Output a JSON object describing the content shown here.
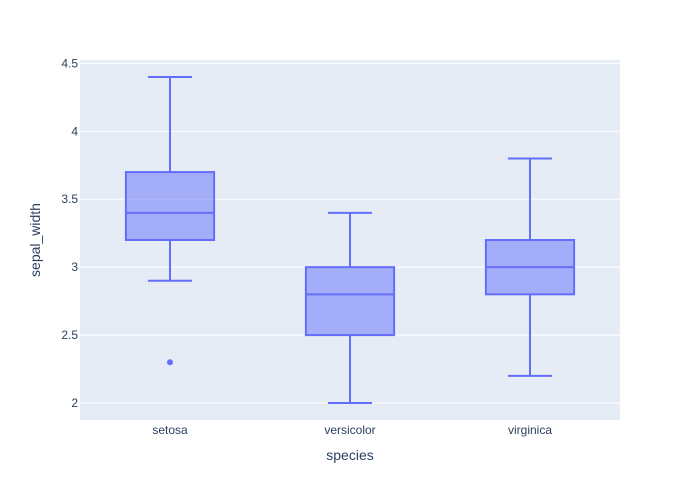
{
  "chart_data": {
    "type": "box",
    "xlabel": "species",
    "ylabel": "sepal_width",
    "categories": [
      "setosa",
      "versicolor",
      "virginica"
    ],
    "ylim": [
      1.875,
      4.525
    ],
    "yticks": [
      2,
      2.5,
      3,
      3.5,
      4,
      4.5
    ],
    "ytick_labels": [
      "2",
      "2.5",
      "3",
      "3.5",
      "4",
      "4.5"
    ],
    "grid": true,
    "boxes": [
      {
        "category": "setosa",
        "min": 2.9,
        "q1": 3.2,
        "median": 3.4,
        "q3": 3.7,
        "max": 4.4,
        "outliers": [
          2.3
        ]
      },
      {
        "category": "versicolor",
        "min": 2.0,
        "q1": 2.5,
        "median": 2.8,
        "q3": 3.0,
        "max": 3.4,
        "outliers": []
      },
      {
        "category": "virginica",
        "min": 2.2,
        "q1": 2.8,
        "median": 3.0,
        "q3": 3.2,
        "max": 3.8,
        "outliers": []
      }
    ],
    "colors": {
      "plot_bg": "#e5ecf6",
      "grid": "#ffffff",
      "box_line": "#636efa",
      "box_fill": "rgba(99,110,250,0.5)",
      "text": "#2a3f5f"
    }
  }
}
